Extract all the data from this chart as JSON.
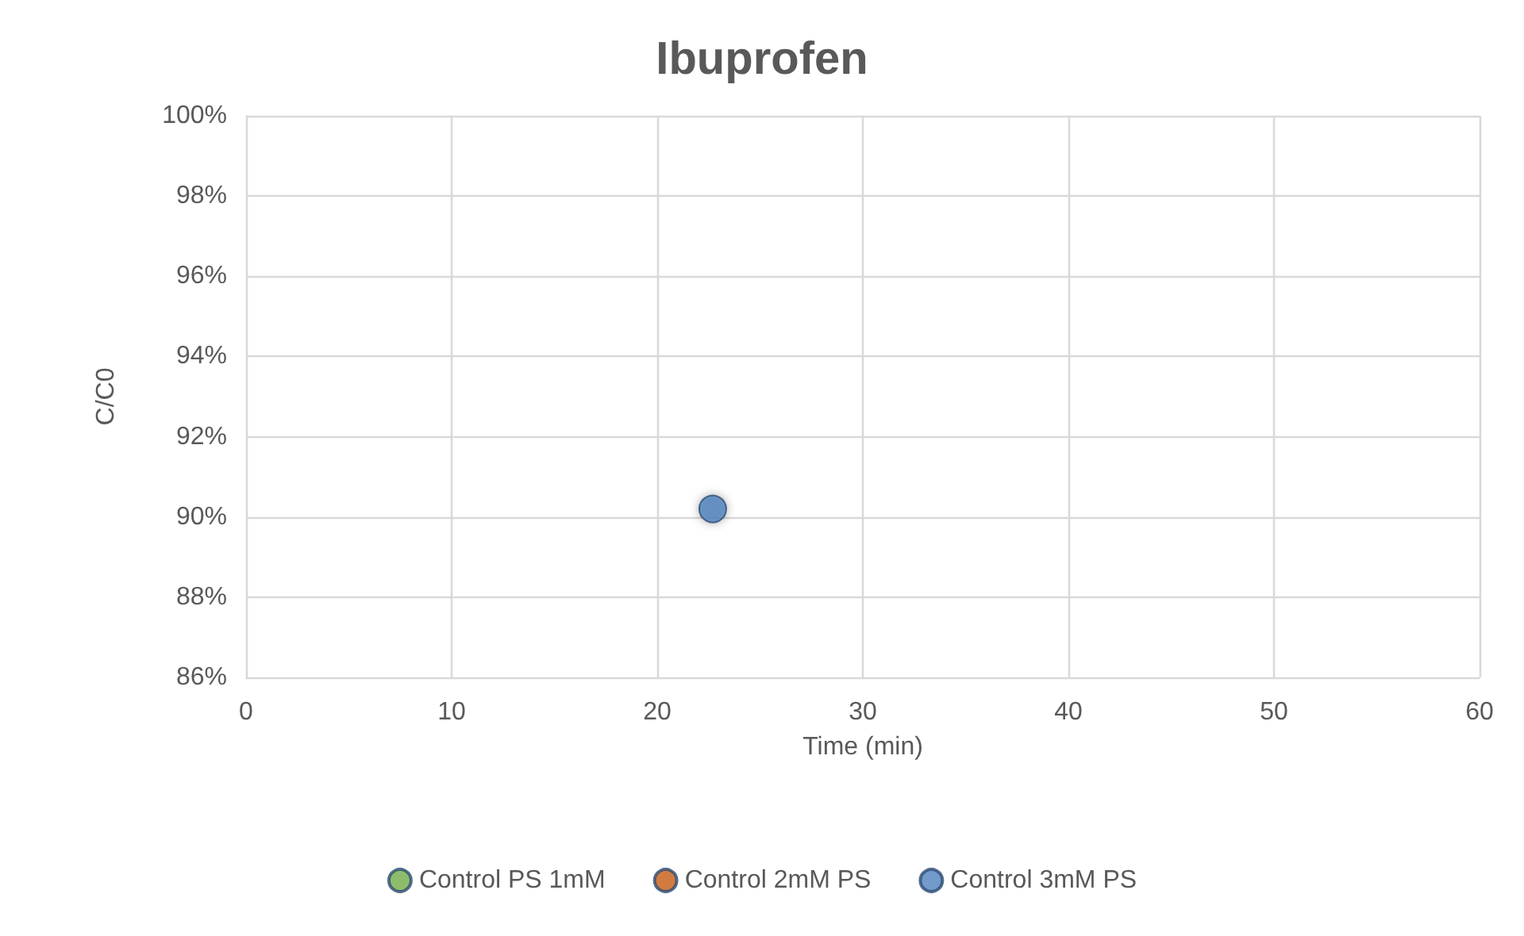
{
  "chart_data": {
    "type": "scatter",
    "title": "Ibuprofen",
    "xlabel": "Time (min)",
    "ylabel": "C/C0",
    "series": [
      {
        "name": "Control PS 1mM",
        "color": "#70ad47"
      },
      {
        "name": "Control 2mM PS",
        "color": "#c55a11"
      },
      {
        "name": "Control 3mM PS",
        "color": "#4f81bd",
        "x": [
          22.7
        ],
        "values": [
          90.2
        ]
      }
    ],
    "xlim": [
      0,
      60
    ],
    "xticks": [
      0,
      10,
      20,
      30,
      40,
      50,
      60
    ],
    "ylim": [
      86,
      100
    ],
    "yticks": [
      {
        "value": 86,
        "label": "86%"
      },
      {
        "value": 88,
        "label": "88%"
      },
      {
        "value": 90,
        "label": "90%"
      },
      {
        "value": 92,
        "label": "92%"
      },
      {
        "value": 94,
        "label": "94%"
      },
      {
        "value": 96,
        "label": "96%"
      },
      {
        "value": 98,
        "label": "98%"
      },
      {
        "value": 100,
        "label": "100%"
      }
    ],
    "grid": true,
    "legend": "bottom",
    "marker": "circle"
  }
}
